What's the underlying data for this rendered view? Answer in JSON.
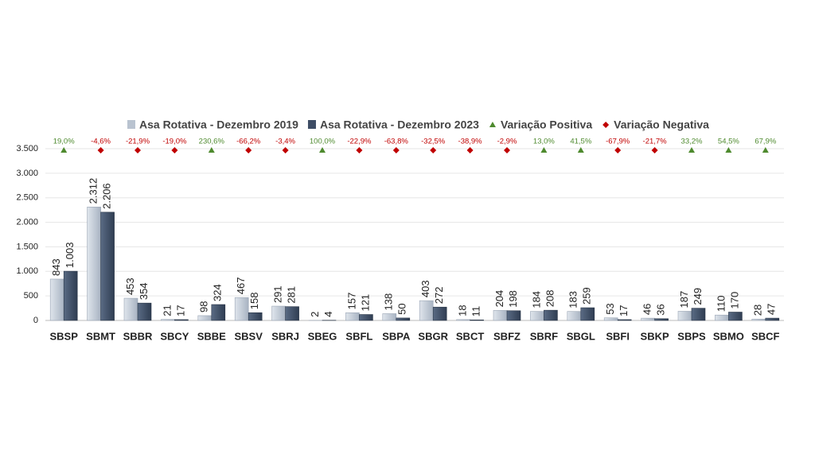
{
  "chart_data": {
    "type": "bar",
    "categories": [
      "SBSP",
      "SBMT",
      "SBBR",
      "SBCY",
      "SBBE",
      "SBSV",
      "SBRJ",
      "SBEG",
      "SBFL",
      "SBPA",
      "SBGR",
      "SBCT",
      "SBFZ",
      "SBRF",
      "SBGL",
      "SBFI",
      "SBKP",
      "SBPS",
      "SBMO",
      "SBCF"
    ],
    "series": [
      {
        "name": "Asa Rotativa - Dezembro 2019",
        "color": "#b9c3d0",
        "values": [
          843,
          2312,
          453,
          21,
          98,
          467,
          291,
          2,
          157,
          138,
          403,
          18,
          204,
          184,
          183,
          53,
          46,
          187,
          110,
          28
        ],
        "value_labels": [
          "843",
          "2.312",
          "453",
          "21",
          "98",
          "467",
          "291",
          "2",
          "157",
          "138",
          "403",
          "18",
          "204",
          "184",
          "183",
          "53",
          "46",
          "187",
          "110",
          "28"
        ]
      },
      {
        "name": "Asa Rotativa - Dezembro 2023",
        "color": "#3d4d65",
        "values": [
          1003,
          2206,
          354,
          17,
          324,
          158,
          281,
          4,
          121,
          50,
          272,
          11,
          198,
          208,
          259,
          17,
          36,
          249,
          170,
          47
        ],
        "value_labels": [
          "1.003",
          "2.206",
          "354",
          "17",
          "324",
          "158",
          "281",
          "4",
          "121",
          "50",
          "272",
          "11",
          "198",
          "208",
          "259",
          "17",
          "36",
          "249",
          "170",
          "47"
        ]
      },
      {
        "name": "Variação Positiva",
        "color": "#4e8a2e",
        "marker": "triangle",
        "values": [
          19.0,
          null,
          null,
          null,
          230.6,
          null,
          null,
          100.0,
          null,
          null,
          null,
          null,
          null,
          13.0,
          41.5,
          null,
          null,
          33.2,
          54.5,
          67.9
        ],
        "value_labels": [
          "19,0%",
          null,
          null,
          null,
          "230,6%",
          null,
          null,
          "100,0%",
          null,
          null,
          null,
          null,
          null,
          "13,0%",
          "41,5%",
          null,
          null,
          "33,2%",
          "54,5%",
          "67,9%"
        ]
      },
      {
        "name": "Variação Negativa",
        "color": "#c00000",
        "marker": "diamond",
        "values": [
          null,
          -4.6,
          -21.9,
          -19.0,
          null,
          -66.2,
          -3.4,
          null,
          -22.9,
          -63.8,
          -32.5,
          -38.9,
          -2.9,
          null,
          null,
          -67.9,
          -21.7,
          null,
          null,
          null
        ],
        "value_labels": [
          null,
          "-4,6%",
          "-21,9%",
          "-19,0%",
          null,
          "-66,2%",
          "-3,4%",
          null,
          "-22,9%",
          "-63,8%",
          "-32,5%",
          "-38,9%",
          "-2,9%",
          null,
          null,
          "-67,9%",
          "-21,7%",
          null,
          null,
          null
        ]
      }
    ],
    "ylim": [
      0,
      3500
    ],
    "yticks": [
      0,
      500,
      {
        "value": 1000,
        "label": "1.000"
      },
      {
        "value": 1500,
        "label": "1.500"
      },
      {
        "value": 2000,
        "label": "2.000"
      },
      {
        "value": 2500,
        "label": "2.500"
      },
      {
        "value": 3000,
        "label": "3.000"
      },
      {
        "value": 3500,
        "label": "3.500"
      }
    ],
    "grid": true
  }
}
